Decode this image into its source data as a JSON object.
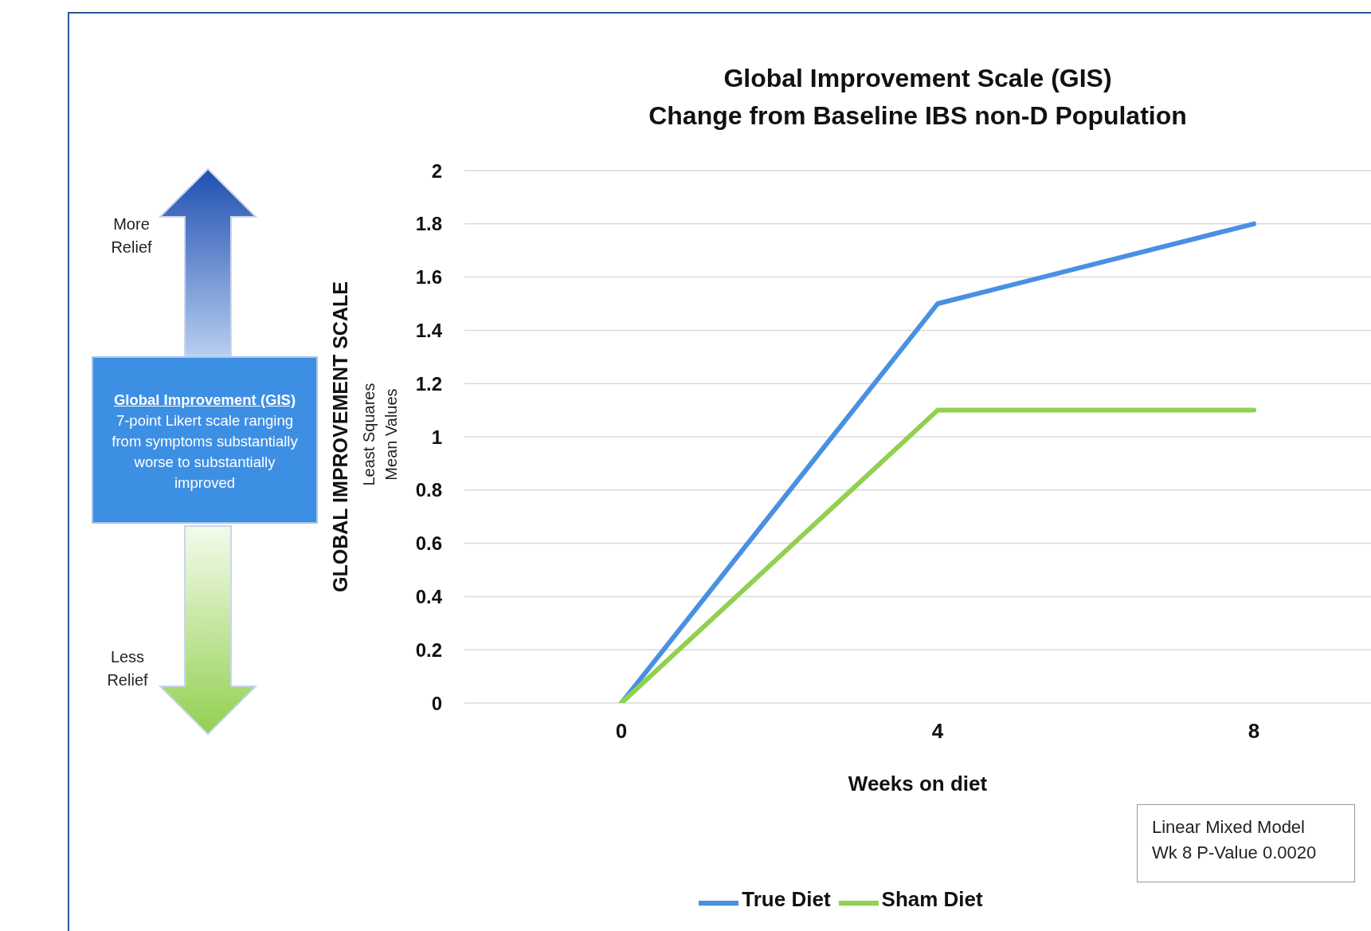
{
  "chart_data": {
    "type": "line",
    "title": "Global Improvement Scale (GIS)",
    "subtitle": "Change from Baseline IBS non-D Population",
    "xlabel": "Weeks on diet",
    "ylabel": "GLOBAL IMPROVEMENT SCALE",
    "categories": [
      "0",
      "4",
      "8"
    ],
    "series": [
      {
        "name": "True Diet",
        "color": "#4a90e2",
        "values": [
          0,
          1.5,
          1.8
        ]
      },
      {
        "name": "Sham Diet",
        "color": "#92d050",
        "values": [
          0,
          1.1,
          1.1
        ]
      }
    ],
    "ylim": [
      0,
      2
    ],
    "yticks": [
      0,
      0.2,
      0.4,
      0.6,
      0.8,
      1,
      1.2,
      1.4,
      1.6,
      1.8,
      2
    ],
    "grid": "y",
    "legend": "bottom",
    "marker": "none",
    "line_style": "solid",
    "annotations": [
      "Least Squares Mean Values",
      "More Relief",
      "Less Relief",
      "Global Improvement (GIS)",
      "7-point Likert scale ranging from symptoms substantially worse to substantially improved",
      "Linear Mixed Model Wk 8 P-Value 0.0020"
    ]
  }
}
